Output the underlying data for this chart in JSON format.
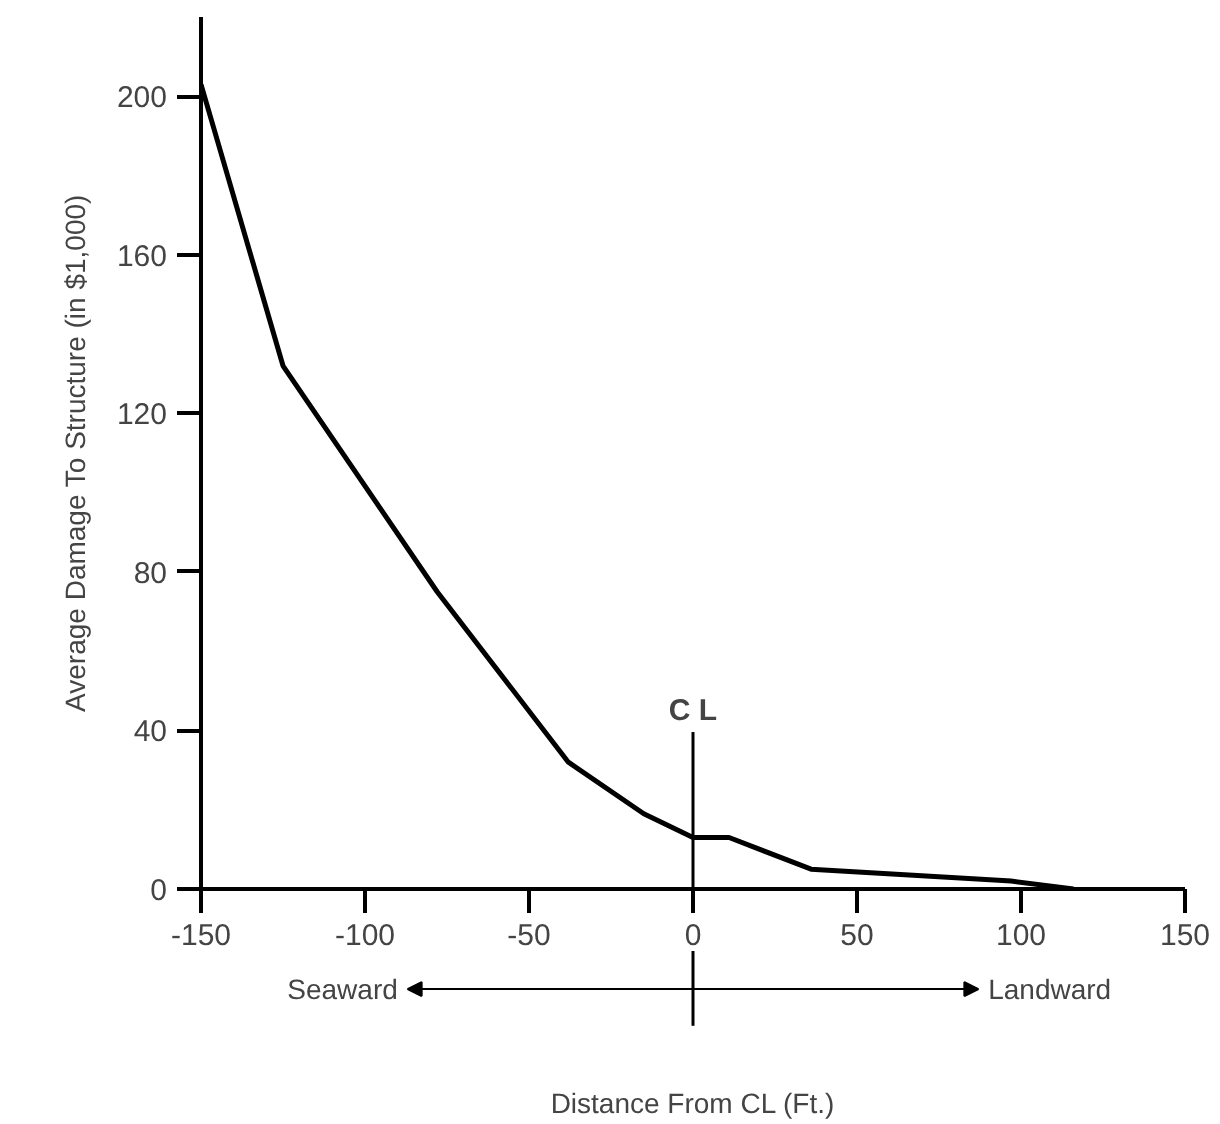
{
  "chart_data": {
    "type": "line",
    "xlabel": "Distance From CL (Ft.)",
    "ylabel": "Average Damage To Structure (in $1,000)",
    "x": [
      -150,
      -125,
      -78,
      -38,
      -15,
      0,
      11,
      36,
      97,
      116
    ],
    "series": [
      {
        "color": "#000000",
        "values": [
          203,
          132,
          75,
          32,
          19,
          13,
          13,
          5,
          2,
          0
        ]
      }
    ],
    "xlim": [
      -150,
      150
    ],
    "ylim": [
      0,
      220
    ],
    "xticks": [
      -150,
      -100,
      -50,
      0,
      50,
      100,
      150
    ],
    "yticks": [
      0,
      40,
      80,
      120,
      160,
      200
    ],
    "ref_lines": [
      {
        "axis": "x",
        "value": 0,
        "label": "C L"
      }
    ],
    "annotations": [
      "Seaward",
      "Landward"
    ],
    "grid": false,
    "line_style": "solid",
    "marker": "none"
  }
}
